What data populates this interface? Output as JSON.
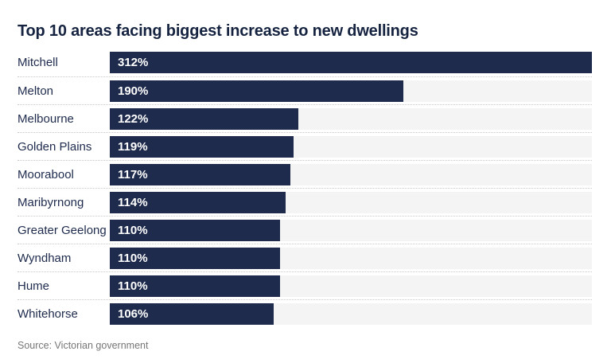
{
  "page": {
    "title": "Top 10 areas facing biggest increase to new dwellings",
    "source": "Source: Victorian government"
  },
  "colors": {
    "bar": "#1e2b4d",
    "track": "#f4f4f4",
    "title_text": "#152340",
    "label_text": "#1e2b4d",
    "value_text": "#ffffff",
    "separator": "#c9c9c9",
    "source_text": "#767676"
  },
  "chart_data": {
    "type": "bar",
    "orientation": "horizontal",
    "title": "Top 10 areas facing biggest increase to new dwellings",
    "categories": [
      "Mitchell",
      "Melton",
      "Melbourne",
      "Golden Plains",
      "Moorabool",
      "Maribyrnong",
      "Greater Geelong",
      "Wyndham",
      "Hume",
      "Whitehorse"
    ],
    "values": [
      312,
      190,
      122,
      119,
      117,
      114,
      110,
      110,
      110,
      106
    ],
    "value_labels": [
      "312%",
      "190%",
      "122%",
      "119%",
      "117%",
      "114%",
      "110%",
      "110%",
      "110%",
      "106%"
    ],
    "unit": "%",
    "xlim": [
      0,
      312
    ],
    "grid": false,
    "legend": false,
    "value_label_position": "inside-left",
    "source": "Source: Victorian government"
  }
}
